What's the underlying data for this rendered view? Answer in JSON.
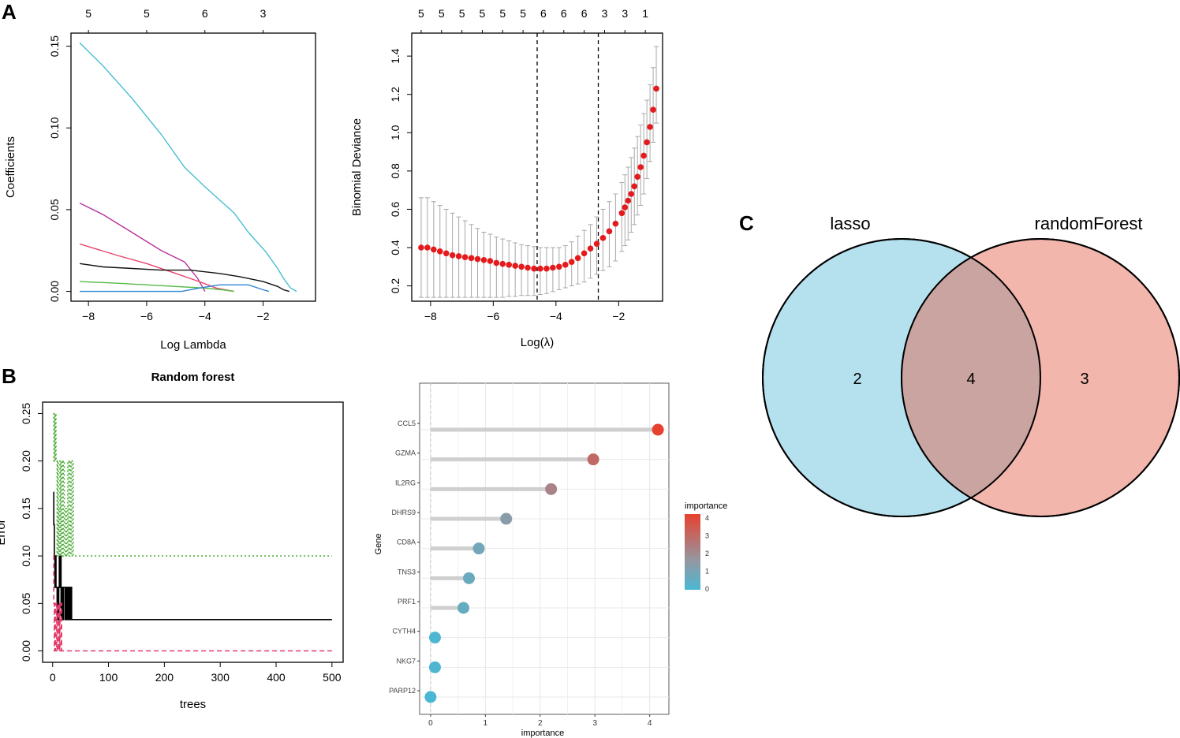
{
  "panel_labels": {
    "a": "A",
    "b": "B",
    "c": "C"
  },
  "chart_data": [
    {
      "id": "lasso_path",
      "type": "line",
      "title": "",
      "xlabel": "Log Lambda",
      "ylabel": "Coefficients",
      "xlim": [
        -8.6,
        -0.2
      ],
      "ylim": [
        -0.006,
        0.158
      ],
      "x_ticks": [
        -8,
        -6,
        -4,
        -2
      ],
      "y_ticks": [
        0.0,
        0.05,
        0.1,
        0.15
      ],
      "y_tick_labels": [
        "0.00",
        "0.05",
        "0.10",
        "0.15"
      ],
      "top_ticks": {
        "x": [
          -8.0,
          -6.0,
          -4.0,
          -2.0
        ],
        "labels": [
          "5",
          "5",
          "6",
          "3"
        ]
      },
      "series": [
        {
          "name": "coef1",
          "color": "#46bfd0",
          "x": [
            -8.3,
            -7.5,
            -6.5,
            -5.5,
            -4.7,
            -4.0,
            -3.5,
            -3.0,
            -2.5,
            -1.9,
            -1.5,
            -1.3,
            -1.05,
            -0.85
          ],
          "y": [
            0.152,
            0.138,
            0.118,
            0.096,
            0.076,
            0.064,
            0.056,
            0.048,
            0.036,
            0.024,
            0.014,
            0.008,
            0.002,
            0.0
          ]
        },
        {
          "name": "coef2",
          "color": "#b6329b",
          "x": [
            -8.3,
            -7.5,
            -6.5,
            -5.5,
            -4.7,
            -4.25,
            -4.0
          ],
          "y": [
            0.054,
            0.047,
            0.036,
            0.025,
            0.018,
            0.008,
            0.0
          ]
        },
        {
          "name": "coef3",
          "color": "#e8456a",
          "x": [
            -8.3,
            -7.0,
            -6.0,
            -5.0,
            -4.2,
            -3.6,
            -3.0
          ],
          "y": [
            0.029,
            0.022,
            0.017,
            0.011,
            0.006,
            0.002,
            0.0
          ]
        },
        {
          "name": "coef4",
          "color": "#111111",
          "x": [
            -8.3,
            -7.5,
            -6.5,
            -5.5,
            -4.5,
            -3.5,
            -2.8,
            -2.0,
            -1.5,
            -1.3,
            -1.1
          ],
          "y": [
            0.017,
            0.015,
            0.014,
            0.013,
            0.013,
            0.011,
            0.009,
            0.006,
            0.003,
            0.001,
            0.0
          ]
        },
        {
          "name": "coef5",
          "color": "#56b848",
          "x": [
            -8.3,
            -7.0,
            -6.0,
            -5.0,
            -4.0,
            -3.4,
            -3.0
          ],
          "y": [
            0.006,
            0.005,
            0.004,
            0.003,
            0.002,
            0.001,
            0.0
          ]
        },
        {
          "name": "coef6",
          "color": "#2f86d6",
          "x": [
            -8.3,
            -6.0,
            -4.8,
            -4.2,
            -3.5,
            -3.0,
            -2.5,
            -2.0,
            -1.8
          ],
          "y": [
            0.0,
            0.0,
            0.0,
            0.002,
            0.004,
            0.004,
            0.004,
            0.001,
            0.0
          ]
        }
      ]
    },
    {
      "id": "cv_deviance",
      "type": "scatter",
      "title": "",
      "xlabel": "Log(λ)",
      "ylabel": "Binomial Deviance",
      "xlim": [
        -8.6,
        -0.6
      ],
      "ylim": [
        0.12,
        1.52
      ],
      "x_ticks": [
        -8,
        -6,
        -4,
        -2
      ],
      "y_ticks": [
        0.2,
        0.4,
        0.6,
        0.8,
        1.0,
        1.2,
        1.4
      ],
      "y_tick_labels": [
        "0.2",
        "0.4",
        "0.6",
        "0.8",
        "1.0",
        "1.2",
        "1.4"
      ],
      "top_ticks": {
        "x": [
          -8.3,
          -7.65,
          -7.0,
          -6.35,
          -5.7,
          -5.05,
          -4.4,
          -3.75,
          -3.1,
          -2.45,
          -1.8,
          -1.15
        ],
        "labels": [
          "5",
          "5",
          "5",
          "5",
          "5",
          "5",
          "6",
          "6",
          "6",
          "3",
          "3",
          "1"
        ]
      },
      "vlines": [
        -4.6,
        -2.65
      ],
      "point_color": "#e41a1c",
      "errorbar_color": "#a8a8a8",
      "points_x": [
        -8.3,
        -8.1,
        -7.9,
        -7.7,
        -7.5,
        -7.3,
        -7.1,
        -6.9,
        -6.7,
        -6.5,
        -6.3,
        -6.1,
        -5.9,
        -5.7,
        -5.5,
        -5.3,
        -5.1,
        -4.9,
        -4.7,
        -4.5,
        -4.3,
        -4.1,
        -3.9,
        -3.7,
        -3.5,
        -3.3,
        -3.1,
        -2.9,
        -2.7,
        -2.5,
        -2.3,
        -2.1,
        -1.9,
        -1.8,
        -1.7,
        -1.6,
        -1.5,
        -1.4,
        -1.3,
        -1.2,
        -1.1,
        -1.0,
        -0.9,
        -0.8
      ],
      "points_y": [
        0.4,
        0.4,
        0.39,
        0.38,
        0.37,
        0.36,
        0.355,
        0.35,
        0.345,
        0.34,
        0.335,
        0.33,
        0.32,
        0.315,
        0.31,
        0.305,
        0.3,
        0.295,
        0.29,
        0.29,
        0.29,
        0.295,
        0.3,
        0.31,
        0.325,
        0.345,
        0.37,
        0.395,
        0.42,
        0.45,
        0.485,
        0.525,
        0.58,
        0.61,
        0.645,
        0.68,
        0.72,
        0.77,
        0.82,
        0.88,
        0.95,
        1.03,
        1.12,
        1.23
      ],
      "err_lo": [
        0.14,
        0.14,
        0.14,
        0.14,
        0.14,
        0.14,
        0.14,
        0.14,
        0.14,
        0.14,
        0.14,
        0.14,
        0.14,
        0.14,
        0.145,
        0.145,
        0.15,
        0.15,
        0.15,
        0.155,
        0.16,
        0.17,
        0.18,
        0.19,
        0.2,
        0.21,
        0.22,
        0.24,
        0.26,
        0.28,
        0.3,
        0.33,
        0.38,
        0.41,
        0.44,
        0.48,
        0.52,
        0.57,
        0.62,
        0.68,
        0.76,
        0.85,
        0.95,
        1.05
      ],
      "err_hi": [
        0.66,
        0.66,
        0.64,
        0.62,
        0.6,
        0.58,
        0.56,
        0.54,
        0.52,
        0.5,
        0.48,
        0.47,
        0.455,
        0.445,
        0.435,
        0.425,
        0.415,
        0.41,
        0.405,
        0.4,
        0.4,
        0.4,
        0.4,
        0.41,
        0.43,
        0.46,
        0.49,
        0.52,
        0.56,
        0.6,
        0.64,
        0.68,
        0.74,
        0.78,
        0.82,
        0.87,
        0.92,
        0.98,
        1.04,
        1.1,
        1.17,
        1.25,
        1.34,
        1.45
      ]
    },
    {
      "id": "rf_error",
      "type": "line",
      "title": "Random forest",
      "xlabel": "trees",
      "ylabel": "Error",
      "xlim": [
        -18,
        520
      ],
      "ylim": [
        -0.012,
        0.262
      ],
      "x_ticks": [
        0,
        100,
        200,
        300,
        400,
        500
      ],
      "y_ticks": [
        0.0,
        0.05,
        0.1,
        0.15,
        0.2,
        0.25
      ],
      "y_tick_labels": [
        "0.00",
        "0.05",
        "0.10",
        "0.15",
        "0.20",
        "0.25"
      ],
      "series": [
        {
          "name": "OOB",
          "color": "#000000",
          "dash": "none",
          "x": [
            1,
            2,
            3,
            4,
            5,
            6,
            7,
            8,
            9,
            10,
            11,
            12,
            13,
            14,
            15,
            16,
            17,
            18,
            19,
            20,
            22,
            24,
            26,
            28,
            30,
            32,
            34,
            36,
            40,
            500
          ],
          "y": [
            0.167,
            0.133,
            0.1,
            0.067,
            0.1,
            0.067,
            0.067,
            0.033,
            0.067,
            0.033,
            0.067,
            0.1,
            0.067,
            0.1,
            0.033,
            0.067,
            0.067,
            0.033,
            0.067,
            0.067,
            0.033,
            0.067,
            0.033,
            0.067,
            0.033,
            0.067,
            0.033,
            0.033,
            0.033,
            0.033
          ]
        },
        {
          "name": "class1",
          "color": "#e23a6b",
          "dash": "6,4",
          "x": [
            1,
            2,
            3,
            4,
            5,
            6,
            7,
            8,
            9,
            10,
            11,
            12,
            13,
            14,
            15,
            16,
            18,
            20,
            500
          ],
          "y": [
            0.1,
            0.05,
            0.0,
            0.05,
            0.0,
            0.0,
            0.05,
            0.0,
            0.0,
            0.05,
            0.0,
            0.05,
            0.0,
            0.0,
            0.05,
            0.0,
            0.0,
            0.0,
            0.0
          ]
        },
        {
          "name": "class2",
          "color": "#4fae3b",
          "dash": "2,3",
          "x": [
            1,
            2,
            3,
            4,
            5,
            6,
            7,
            8,
            9,
            10,
            11,
            12,
            13,
            14,
            15,
            17,
            19,
            21,
            23,
            25,
            27,
            29,
            31,
            33,
            35,
            37,
            40,
            500
          ],
          "y": [
            0.25,
            0.2,
            0.25,
            0.2,
            0.25,
            0.2,
            0.2,
            0.1,
            0.2,
            0.15,
            0.1,
            0.15,
            0.2,
            0.1,
            0.2,
            0.1,
            0.2,
            0.1,
            0.15,
            0.1,
            0.2,
            0.1,
            0.2,
            0.1,
            0.2,
            0.1,
            0.1,
            0.1
          ]
        }
      ]
    },
    {
      "id": "importance",
      "type": "scatter",
      "title": "",
      "xlabel": "importance",
      "ylabel": "Gene",
      "xlim": [
        -0.2,
        4.35
      ],
      "x_ticks": [
        0,
        1,
        2,
        3,
        4
      ],
      "categories": [
        "CCL5",
        "GZMA",
        "IL2RG",
        "DHRS9",
        "CD8A",
        "TNS3",
        "PRF1",
        "CYTH4",
        "NKG7",
        "PARP12"
      ],
      "values": [
        4.15,
        2.97,
        2.2,
        1.38,
        0.88,
        0.7,
        0.6,
        0.08,
        0.08,
        0.0
      ],
      "legend": {
        "title": "importance",
        "labels": [
          "4",
          "3",
          "2",
          "1",
          "0"
        ],
        "position": "right",
        "low_color": "#4ab8d4",
        "high_color": "#e8402e"
      }
    }
  ],
  "venn": {
    "left_label": "lasso",
    "right_label": "randomForest",
    "left_only": "2",
    "both": "4",
    "right_only": "3",
    "left_color": "#b5e1ef",
    "right_color": "#f3b6ac",
    "overlap_color": "#c9a4a1"
  }
}
